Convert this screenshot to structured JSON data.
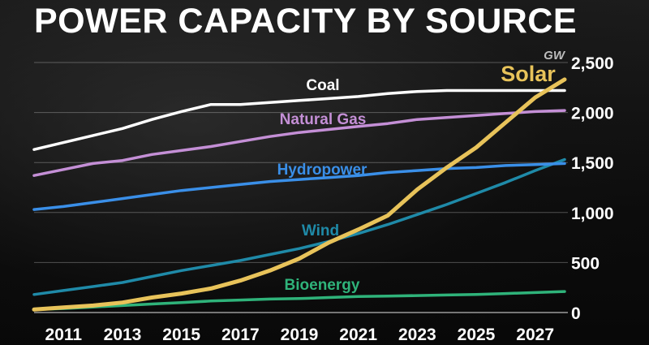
{
  "chart_data": {
    "type": "line",
    "title": "POWER CAPACITY BY SOURCE",
    "unit": "GW",
    "x": [
      2010,
      2011,
      2012,
      2013,
      2014,
      2015,
      2016,
      2017,
      2018,
      2019,
      2020,
      2021,
      2022,
      2023,
      2024,
      2025,
      2026,
      2027,
      2028
    ],
    "x_tick_labels": [
      "2011",
      "2013",
      "2015",
      "2017",
      "2019",
      "2021",
      "2023",
      "2025",
      "2027"
    ],
    "ylim": [
      0,
      2500
    ],
    "y_ticks": [
      0,
      500,
      1000,
      1500,
      2000,
      2500
    ],
    "y_tick_labels": [
      "0",
      "500",
      "1,000",
      "1,500",
      "2,000",
      "2,500"
    ],
    "grid": true,
    "series": [
      {
        "name": "Coal",
        "color": "#ffffff",
        "values": [
          1630,
          1700,
          1770,
          1840,
          1930,
          2010,
          2080,
          2080,
          2100,
          2120,
          2140,
          2160,
          2190,
          2210,
          2220,
          2220,
          2220,
          2220,
          2220
        ]
      },
      {
        "name": "Natural Gas",
        "color": "#c48fd6",
        "values": [
          1370,
          1430,
          1490,
          1520,
          1580,
          1620,
          1660,
          1710,
          1760,
          1800,
          1830,
          1860,
          1890,
          1930,
          1950,
          1970,
          1990,
          2010,
          2020
        ]
      },
      {
        "name": "Hydropower",
        "color": "#3a8fe8",
        "values": [
          1030,
          1060,
          1100,
          1140,
          1180,
          1220,
          1250,
          1280,
          1310,
          1330,
          1350,
          1370,
          1400,
          1420,
          1440,
          1450,
          1470,
          1480,
          1490
        ]
      },
      {
        "name": "Wind",
        "color": "#1f8aa8",
        "values": [
          180,
          220,
          260,
          300,
          360,
          420,
          470,
          520,
          580,
          640,
          710,
          790,
          880,
          980,
          1080,
          1190,
          1300,
          1420,
          1530
        ]
      },
      {
        "name": "Bioenergy",
        "color": "#2fb37a",
        "values": [
          30,
          40,
          55,
          70,
          85,
          100,
          115,
          125,
          135,
          140,
          150,
          160,
          165,
          170,
          175,
          180,
          190,
          200,
          210
        ]
      },
      {
        "name": "Solar",
        "color": "#e8c35a",
        "values": [
          30,
          50,
          70,
          100,
          150,
          190,
          240,
          320,
          420,
          540,
          700,
          830,
          970,
          1230,
          1450,
          1650,
          1900,
          2150,
          2330
        ]
      }
    ]
  }
}
